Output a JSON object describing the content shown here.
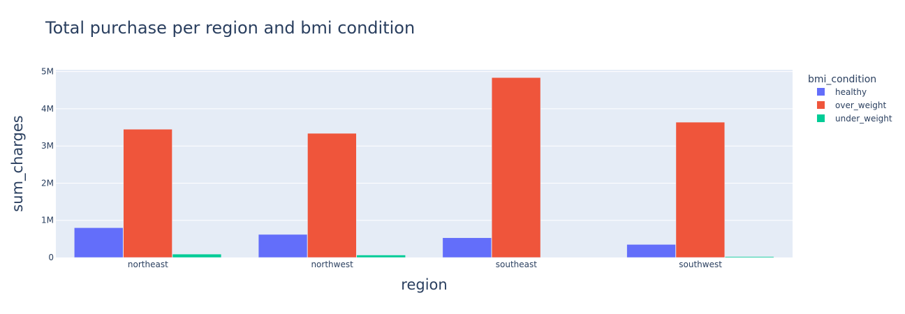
{
  "chart_data": {
    "type": "bar",
    "title": "Total purchase per region and bmi condition",
    "xlabel": "region",
    "ylabel": "sum_charges",
    "categories": [
      "northeast",
      "northwest",
      "southeast",
      "southwest"
    ],
    "series": [
      {
        "name": "healthy",
        "color": "#636efa",
        "values": [
          800000,
          620000,
          530000,
          350000
        ]
      },
      {
        "name": "over_weight",
        "color": "#ef553b",
        "values": [
          3450000,
          3340000,
          4840000,
          3640000
        ]
      },
      {
        "name": "under_weight",
        "color": "#00cc96",
        "values": [
          90000,
          65000,
          0,
          25000
        ]
      }
    ],
    "ylim": [
      0,
      5050000
    ],
    "yticks": [
      0,
      1000000,
      2000000,
      3000000,
      4000000,
      5000000
    ],
    "ytick_labels": [
      "0",
      "1M",
      "2M",
      "3M",
      "4M",
      "5M"
    ],
    "legend_title": "bmi_condition",
    "legend_position": "right",
    "grid": true,
    "plot_background": "#e5ecf6"
  }
}
